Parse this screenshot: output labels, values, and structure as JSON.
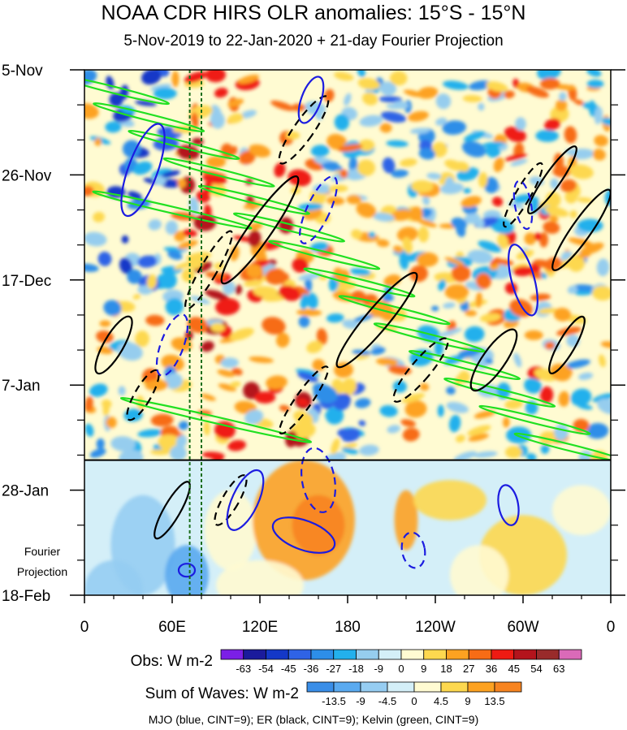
{
  "title": "NOAA CDR HIRS OLR anomalies: 15°S - 15°N",
  "subtitle": "5-Nov-2019 to 22-Jan-2020 + 21-day Fourier Projection",
  "chart_data": {
    "type": "heatmap",
    "x_ticks": [
      "0",
      "60E",
      "120E",
      "180",
      "120W",
      "60W",
      "0"
    ],
    "x_tick_values": [
      0,
      60,
      120,
      180,
      240,
      300,
      360
    ],
    "y_ticks": [
      "5-Nov",
      "26-Nov",
      "17-Dec",
      "7-Jan",
      "28-Jan",
      "18-Feb"
    ],
    "y_tick_days": [
      0,
      21,
      42,
      63,
      84,
      105
    ],
    "observed_end_label": "22-Jan-2020",
    "observed_end_day": 78,
    "projection_label": "Fourier\nProjection",
    "reference_longitudes": [
      72,
      80
    ],
    "obs_colorbar": {
      "label": "Obs: W m-2",
      "ticks": [
        "-63",
        "-54",
        "-45",
        "-36",
        "-27",
        "-18",
        "-9",
        "0",
        "9",
        "18",
        "27",
        "36",
        "45",
        "54",
        "63"
      ],
      "colors": [
        "#7b1fe6",
        "#1b1b9c",
        "#1438c8",
        "#2f63e6",
        "#2d8ee8",
        "#23b0ec",
        "#96cdee",
        "#d4eff8",
        "#fffbd2",
        "#fdd84f",
        "#fda221",
        "#f76c15",
        "#ef1b13",
        "#b4141c",
        "#992b2b",
        "#da6ab8"
      ]
    },
    "waves_colorbar": {
      "label": "Sum of Waves: W m-2",
      "ticks": [
        "-13.5",
        "-9",
        "-4.5",
        "0",
        "4.5",
        "9",
        "13.5"
      ],
      "colors": [
        "#3a8ee8",
        "#5aaaf0",
        "#96cdf2",
        "#d4eff8",
        "#fffbd2",
        "#fdd84f",
        "#fda221",
        "#f78420"
      ]
    },
    "legend_text": "MJO (blue, CINT=9); ER (black, CINT=9); Kelvin (green, CINT=9)",
    "series": [
      {
        "name": "MJO",
        "color": "#1c1ce0"
      },
      {
        "name": "ER",
        "color": "#000000"
      },
      {
        "name": "Kelvin",
        "color": "#22e022"
      }
    ]
  }
}
